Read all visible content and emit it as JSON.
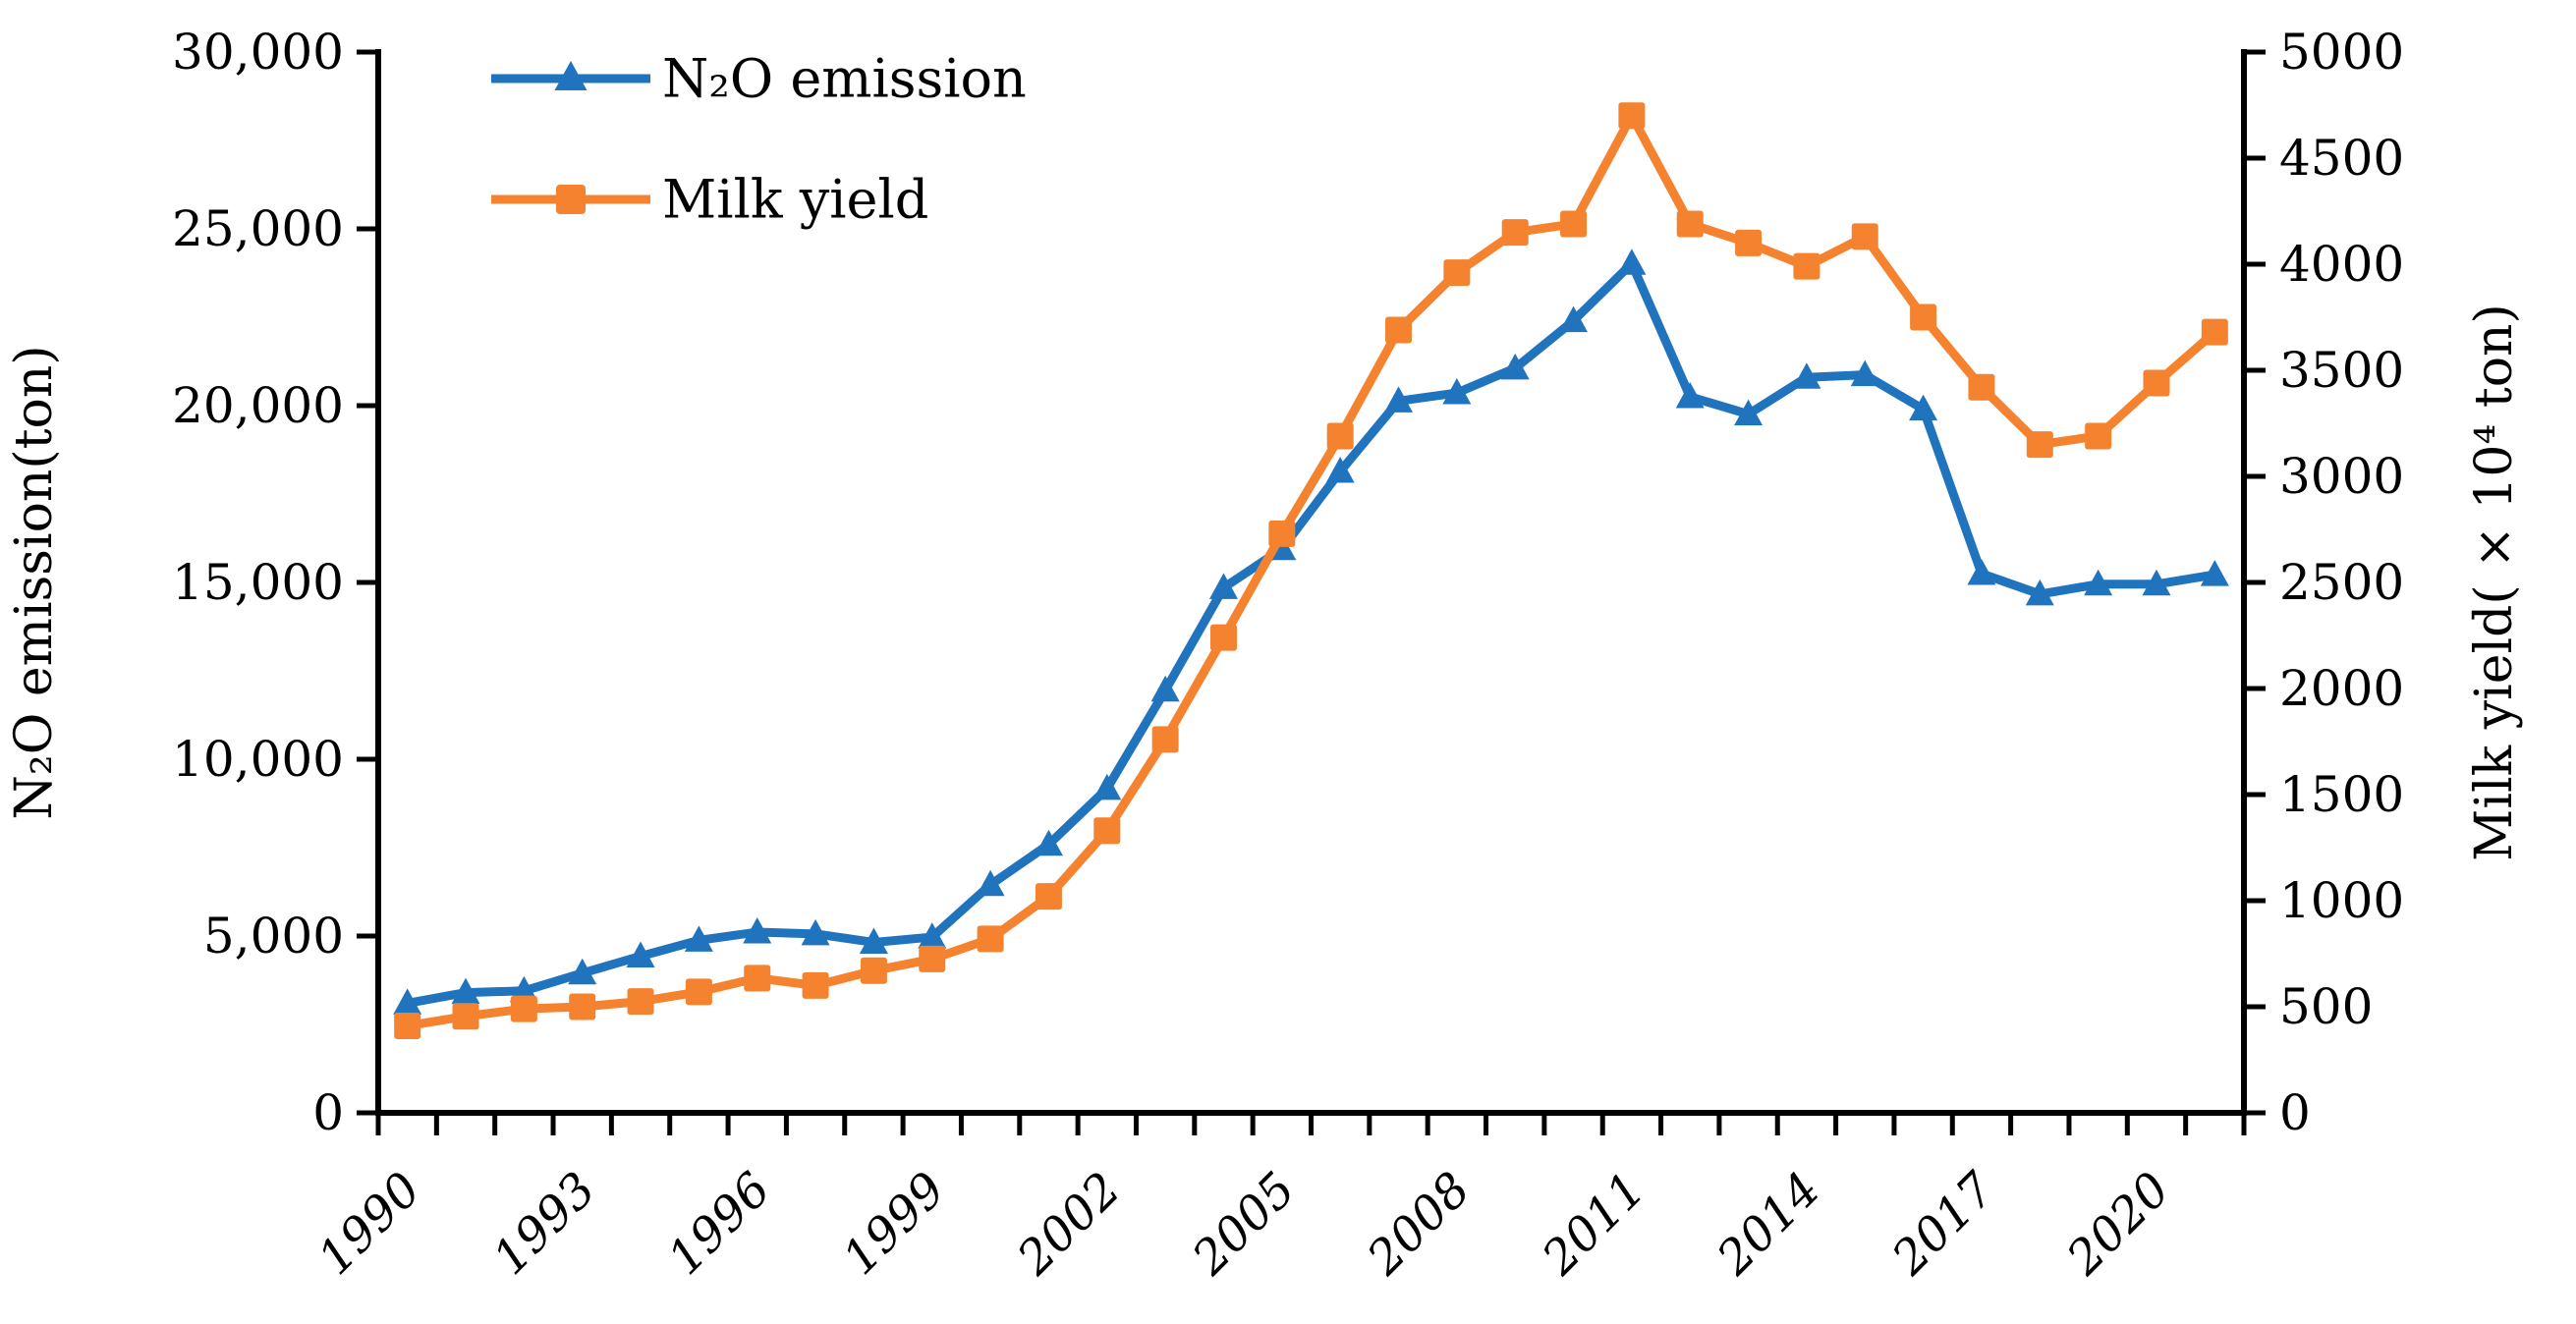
{
  "figure": {
    "kind": "dual-axis line chart",
    "background": "#ffffff"
  },
  "colors": {
    "n2o": "#2074BE",
    "milk": "#F5822E",
    "axis": "#000000"
  },
  "legend": {
    "items": [
      {
        "label": "N₂O emission",
        "marker": "triangle-icon",
        "series": "n2o"
      },
      {
        "label": "Milk yield",
        "marker": "square-icon",
        "series": "milk"
      }
    ]
  },
  "left_axis": {
    "title": "N₂O emission(ton)",
    "min": 0,
    "max": 30000,
    "step": 5000,
    "tick_labels": [
      "0",
      "5,000",
      "10,000",
      "15,000",
      "20,000",
      "25,000",
      "30,000"
    ]
  },
  "right_axis": {
    "title": "Milk yield( × 10⁴ ton)",
    "min": 0,
    "max": 5000,
    "step": 500,
    "tick_labels": [
      "0",
      "500",
      "1000",
      "1500",
      "2000",
      "2500",
      "3000",
      "3500",
      "4000",
      "4500",
      "5000"
    ]
  },
  "x_axis": {
    "labeled_years": [
      "1990",
      "1993",
      "1996",
      "1999",
      "2002",
      "2005",
      "2008",
      "2011",
      "2014",
      "2017",
      "2020"
    ],
    "label_every": 3
  },
  "chart_data": {
    "type": "line",
    "title": "",
    "xlabel": "",
    "x": [
      1990,
      1991,
      1992,
      1993,
      1994,
      1995,
      1996,
      1997,
      1998,
      1999,
      2000,
      2001,
      2002,
      2003,
      2004,
      2005,
      2006,
      2007,
      2008,
      2009,
      2010,
      2011,
      2012,
      2013,
      2014,
      2015,
      2016,
      2017,
      2018,
      2019,
      2020,
      2021
    ],
    "left_ylim": [
      0,
      30000
    ],
    "right_ylim": [
      0,
      5000
    ],
    "grid": false,
    "legend_position": "top-left-inside",
    "series": [
      {
        "name": "N₂O emission",
        "axis": "left",
        "unit": "ton",
        "marker": "triangle",
        "color_key": "n2o",
        "values": [
          3100,
          3400,
          3450,
          3950,
          4430,
          4880,
          5110,
          5060,
          4820,
          4970,
          6450,
          7590,
          9170,
          11950,
          14850,
          15950,
          18140,
          20130,
          20360,
          21060,
          22400,
          24020,
          20250,
          19760,
          20800,
          20870,
          19900,
          15250,
          14670,
          14950,
          14950,
          15220
        ]
      },
      {
        "name": "Milk yield",
        "axis": "right",
        "unit": "×10⁴ ton",
        "marker": "square",
        "color_key": "milk",
        "values": [
          410,
          455,
          490,
          500,
          525,
          570,
          635,
          600,
          670,
          725,
          820,
          1020,
          1330,
          1760,
          2240,
          2730,
          3190,
          3690,
          3960,
          4150,
          4190,
          4700,
          4190,
          4100,
          3990,
          4130,
          3750,
          3420,
          3150,
          3190,
          3440,
          3680
        ]
      }
    ]
  }
}
